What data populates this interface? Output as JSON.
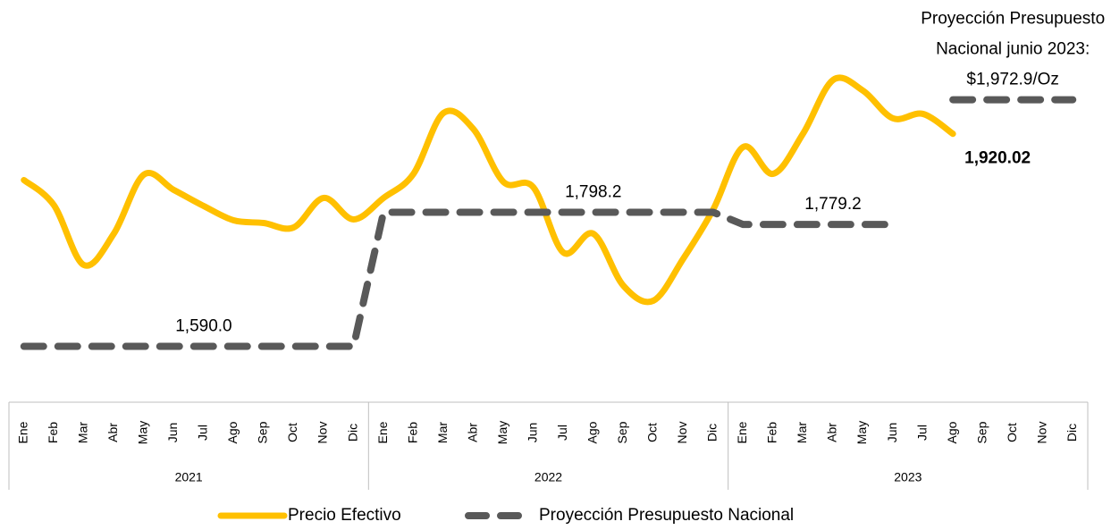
{
  "chart_data": {
    "type": "line",
    "categories": [
      "Ene",
      "Feb",
      "Mar",
      "Abr",
      "May",
      "Jun",
      "Jul",
      "Ago",
      "Sep",
      "Oct",
      "Nov",
      "Dic",
      "Ene",
      "Feb",
      "Mar",
      "Abr",
      "May",
      "Jun",
      "Jul",
      "Ago",
      "Sep",
      "Oct",
      "Nov",
      "Dic",
      "Ene",
      "Feb",
      "Mar",
      "Abr",
      "May",
      "Jun",
      "Jul",
      "Ago",
      "Sep",
      "Oct",
      "Nov",
      "Dic"
    ],
    "x_groups": [
      "2021",
      "2022",
      "2023"
    ],
    "ylim": [
      1470,
      2100
    ],
    "legend": "bottom",
    "annotation": [
      "Proyección Presupuesto",
      "Nacional junio 2023:"
    ],
    "series": [
      {
        "name": "Precio Efectivo",
        "color": "#FFC000",
        "values": [
          1848.2,
          1809.3,
          1716.3,
          1764.9,
          1856.5,
          1832.9,
          1807.9,
          1785.7,
          1781.5,
          1774.6,
          1820.4,
          1787.1,
          1820.4,
          1857.9,
          1952.3,
          1927.3,
          1845.4,
          1837.1,
          1735.7,
          1764.9,
          1684.4,
          1660.8,
          1726.0,
          1802.4,
          1899.5,
          1857.9,
          1920.3,
          2003.6,
          1987.0,
          1944.0,
          1950.9,
          1920.02,
          null,
          null,
          null,
          null
        ],
        "value_labels": [
          null,
          null,
          null,
          null,
          null,
          null,
          null,
          null,
          null,
          null,
          null,
          null,
          null,
          null,
          null,
          null,
          null,
          null,
          null,
          null,
          null,
          null,
          null,
          null,
          null,
          null,
          null,
          null,
          null,
          null,
          null,
          "1,920.02",
          null,
          null,
          null,
          null
        ]
      },
      {
        "name": "Proyección Presupuesto Nacional",
        "color": "#595959",
        "values": [
          1590,
          1590,
          1590,
          1590,
          1590,
          1590,
          1590,
          1590,
          1590,
          1590,
          1590,
          1590,
          1798.2,
          1798.2,
          1798.2,
          1798.2,
          1798.2,
          1798.2,
          1798.2,
          1798.2,
          1798.2,
          1798.2,
          1798.2,
          1798.2,
          1779.2,
          1779.2,
          1779.2,
          1779.2,
          1779.2,
          1779.2,
          null,
          1972.9,
          1972.9,
          1972.9,
          1972.9,
          1972.9
        ],
        "value_labels": [
          null,
          null,
          null,
          null,
          null,
          null,
          "1,590.0",
          null,
          null,
          null,
          null,
          null,
          null,
          null,
          null,
          null,
          null,
          null,
          null,
          "1,798.2",
          null,
          null,
          null,
          null,
          null,
          null,
          null,
          "1,779.2",
          null,
          null,
          null,
          null,
          null,
          "$1,972.9/Oz",
          null,
          null
        ]
      }
    ]
  }
}
